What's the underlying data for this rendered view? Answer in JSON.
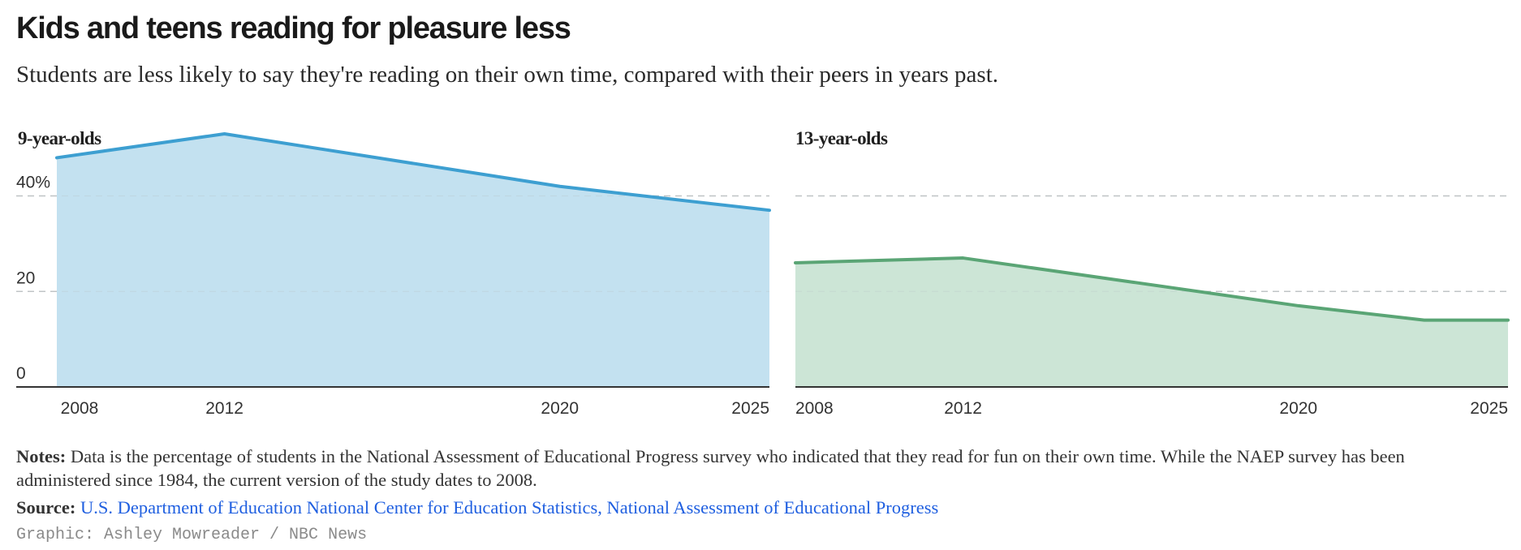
{
  "title": "Kids and teens reading for pleasure less",
  "subtitle": "Students are less likely to say they're reading on their own time, compared with their peers in years past.",
  "chart_data": [
    {
      "type": "area",
      "title": "9-year-olds",
      "color": "#3d9fd1",
      "fill": "#c3e1f0",
      "x": [
        2008,
        2012,
        2016,
        2020,
        2025
      ],
      "values": [
        48,
        53,
        47.5,
        42,
        37
      ],
      "xlim": [
        2008,
        2025
      ],
      "ylim": [
        0,
        53
      ],
      "yticks": [
        0,
        20,
        40
      ],
      "ytick_labels": [
        "0",
        "20",
        "40%"
      ],
      "xticks": [
        2008,
        2012,
        2020,
        2025
      ],
      "grid": true
    },
    {
      "type": "area",
      "title": "13-year-olds",
      "color": "#5aa575",
      "fill": "#cce5d6",
      "x": [
        2008,
        2012,
        2016,
        2020,
        2023,
        2025
      ],
      "values": [
        26,
        27,
        22,
        17,
        14,
        14
      ],
      "xlim": [
        2008,
        2025
      ],
      "ylim": [
        0,
        53
      ],
      "yticks": [
        0,
        20,
        40
      ],
      "ytick_labels": [],
      "xticks": [
        2008,
        2012,
        2020,
        2025
      ],
      "grid": true
    }
  ],
  "notes": {
    "label": "Notes:",
    "text": "Data is the percentage of students in the National Assessment of Educational Progress survey who indicated that they read for fun on their own time. While the NAEP survey has been administered since 1984, the current version of the study dates to 2008."
  },
  "source": {
    "label": "Source:",
    "text": "U.S. Department of Education National Center for Education Statistics, National Assessment of Educational Progress"
  },
  "credit": "Graphic: Ashley Mowreader / NBC News"
}
